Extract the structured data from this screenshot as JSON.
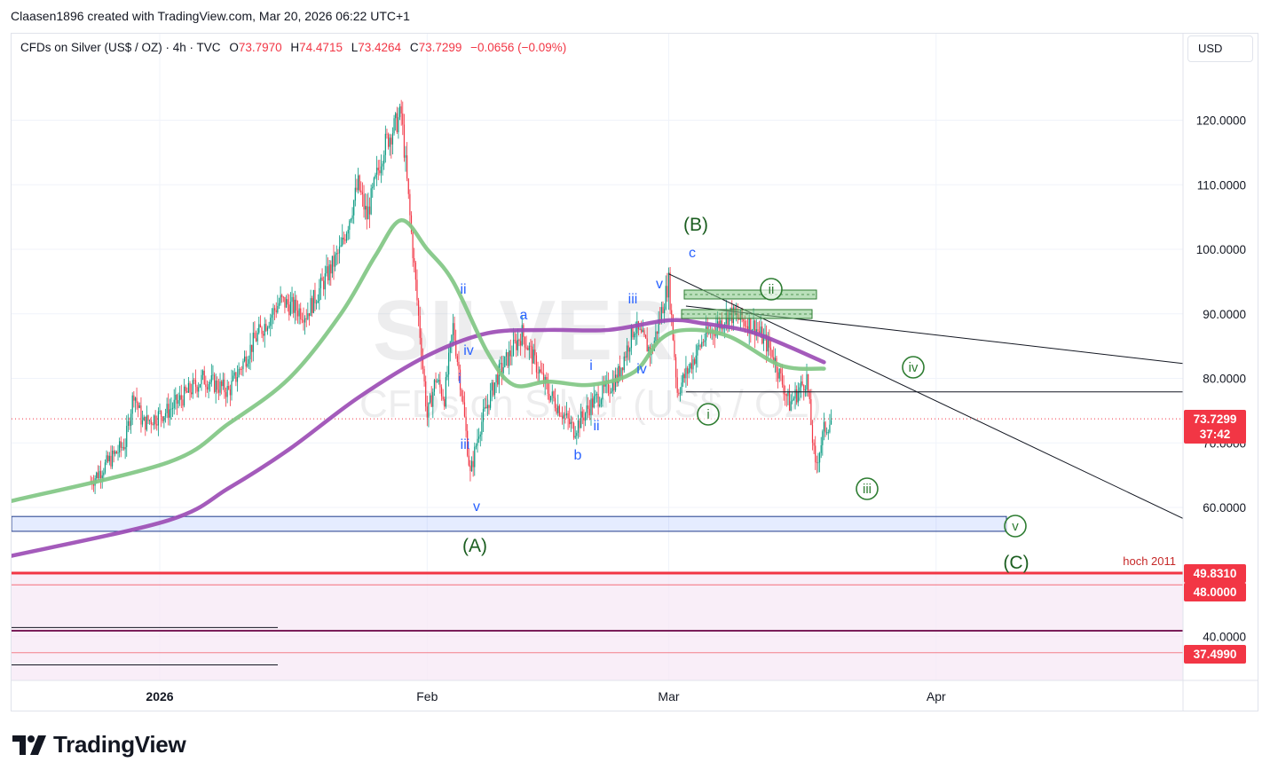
{
  "credit": "Claasen1896 created with TradingView.com, Mar 20, 2026 06:22 UTC+1",
  "legend": {
    "symbol": "CFDs on Silver (US$ / OZ) · 4h · TVC",
    "open_label": "O",
    "open": "73.7970",
    "high_label": "H",
    "high": "74.4715",
    "low_label": "L",
    "low": "73.4264",
    "close_label": "C",
    "close": "73.7299",
    "change": "−0.0656 (−0.09%)"
  },
  "currency_button": "USD",
  "brand": "TradingView",
  "watermark": {
    "symbol": "SILVER",
    "description": "CFDs on Silver (US$ / OZ)"
  },
  "colors": {
    "ema_fast": "#81c784",
    "ema_slow": "#9c4db5",
    "wave_blue": "#2962ff",
    "wave_green": "#1b5e20",
    "support_red": "#f23645",
    "candle_up": "#089981",
    "candle_down": "#f23645"
  },
  "chart_data": {
    "type": "candlestick",
    "timeframe": "4h",
    "ylim": [
      33,
      135
    ],
    "y_ticks": [
      "120.0000",
      "110.0000",
      "100.0000",
      "90.0000",
      "80.0000",
      "70.0000",
      "60.0000",
      "40.0000"
    ],
    "x_ticks": [
      "2026",
      "Feb",
      "Mar",
      "Apr"
    ],
    "last_price": "73.7299",
    "countdown": "37:42",
    "price_levels": [
      {
        "value": "49.8310",
        "label": "hoch 2011"
      },
      {
        "value": "48.0000",
        "label": ""
      },
      {
        "value": "37.4990",
        "label": ""
      }
    ],
    "price_path": [
      [
        "Dec 24",
        64
      ],
      [
        "Dec 28",
        70
      ],
      [
        "Dec 29",
        78
      ],
      [
        "Dec 30",
        73
      ],
      [
        "Jan 2",
        75
      ],
      [
        "Jan 6",
        80
      ],
      [
        "Jan 9",
        78
      ],
      [
        "Jan 12",
        86
      ],
      [
        "Jan 15",
        92
      ],
      [
        "Jan 18",
        90
      ],
      [
        "Jan 20",
        95
      ],
      [
        "Jan 22",
        100
      ],
      [
        "Jan 24",
        110
      ],
      [
        "Jan 25",
        105
      ],
      [
        "Jan 27",
        116
      ],
      [
        "Jan 29",
        121
      ],
      [
        "Jan 30",
        105
      ],
      [
        "Feb 1",
        74
      ],
      [
        "Feb 2",
        80
      ],
      [
        "Feb 3",
        77
      ],
      [
        "Feb 4",
        88
      ],
      [
        "Feb 5",
        78
      ],
      [
        "Feb 6",
        65
      ],
      [
        "Feb 7",
        72
      ],
      [
        "Feb 9",
        80
      ],
      [
        "Feb 12",
        87
      ],
      [
        "Feb 15",
        78
      ],
      [
        "Feb 18",
        72
      ],
      [
        "Feb 20",
        76
      ],
      [
        "Feb 23",
        80
      ],
      [
        "Feb 25",
        88
      ],
      [
        "Feb 27",
        84
      ],
      [
        "Mar 1",
        95
      ],
      [
        "Mar 2",
        78
      ],
      [
        "Mar 5",
        86
      ],
      [
        "Mar 8",
        90
      ],
      [
        "Mar 11",
        88
      ],
      [
        "Mar 13",
        84
      ],
      [
        "Mar 15",
        76
      ],
      [
        "Mar 17",
        80
      ],
      [
        "Mar 18",
        66
      ],
      [
        "Mar 19",
        72
      ],
      [
        "Mar 20",
        73.73
      ]
    ],
    "ema_fast_path": [
      [
        "Dec 24",
        61
      ],
      [
        "Jan 2",
        67
      ],
      [
        "Jan 9",
        73
      ],
      [
        "Jan 16",
        80
      ],
      [
        "Jan 22",
        90
      ],
      [
        "Jan 26",
        99
      ],
      [
        "Jan 29",
        104.5
      ],
      [
        "Feb 1",
        100
      ],
      [
        "Feb 4",
        95
      ],
      [
        "Feb 8",
        84
      ],
      [
        "Feb 11",
        79
      ],
      [
        "Feb 15",
        79.5
      ],
      [
        "Feb 20",
        79
      ],
      [
        "Feb 25",
        81
      ],
      [
        "Feb 28",
        86
      ],
      [
        "Mar 3",
        87.5
      ],
      [
        "Mar 8",
        86.5
      ],
      [
        "Mar 14",
        82
      ],
      [
        "Mar 19",
        81.5
      ]
    ],
    "ema_slow_path": [
      [
        "Dec 24",
        52.5
      ],
      [
        "Jan 2",
        58
      ],
      [
        "Jan 9",
        63
      ],
      [
        "Jan 16",
        69
      ],
      [
        "Jan 24",
        77
      ],
      [
        "Feb 1",
        83.5
      ],
      [
        "Feb 8",
        87
      ],
      [
        "Feb 15",
        87.5
      ],
      [
        "Feb 22",
        87.5
      ],
      [
        "Mar 1",
        89
      ],
      [
        "Mar 5",
        88.5
      ],
      [
        "Mar 11",
        87
      ],
      [
        "Mar 19",
        82.5
      ]
    ],
    "waves": [
      {
        "label": "(A)",
        "color": "green"
      },
      {
        "label": "(B)",
        "color": "green"
      },
      {
        "label": "(C)",
        "color": "green"
      },
      {
        "label": "a",
        "color": "blue"
      },
      {
        "label": "b",
        "color": "blue"
      },
      {
        "label": "c",
        "color": "blue"
      },
      {
        "label": "i",
        "color": "blue"
      },
      {
        "label": "ii",
        "color": "blue"
      },
      {
        "label": "iii",
        "color": "blue"
      },
      {
        "label": "iv",
        "color": "blue"
      },
      {
        "label": "v",
        "color": "blue"
      },
      {
        "label": "i",
        "color": "blue"
      },
      {
        "label": "ii",
        "color": "blue"
      },
      {
        "label": "iii",
        "color": "blue"
      },
      {
        "label": "iv",
        "color": "blue"
      },
      {
        "label": "v",
        "color": "blue"
      },
      {
        "label": "i",
        "color": "green-circled"
      },
      {
        "label": "ii",
        "color": "green-circled"
      },
      {
        "label": "iii",
        "color": "green-circled"
      },
      {
        "label": "iv",
        "color": "green-circled"
      },
      {
        "label": "v",
        "color": "green-circled"
      }
    ]
  }
}
